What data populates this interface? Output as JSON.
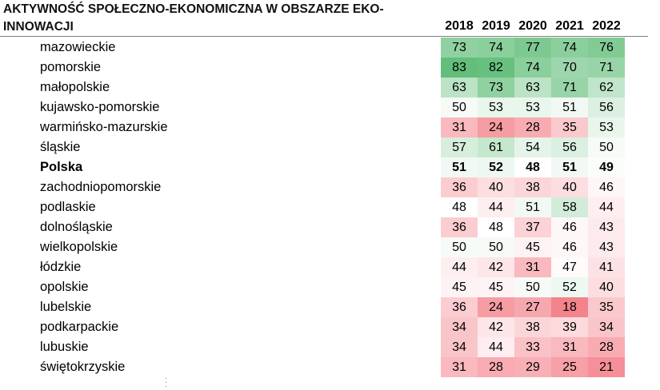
{
  "chart_data": {
    "type": "table",
    "title": "AKTYWNOŚĆ SPOŁECZNO-EKONOMICZNA W OBSZARZE EKO-INNOWACJI",
    "title_line1": "AKTYWNOŚĆ SPOŁECZNO-EKONOMICZNA W OBSZARZE EKO-",
    "title_line2": "INNOWACJI",
    "years": [
      "2018",
      "2019",
      "2020",
      "2021",
      "2022"
    ],
    "color_scale": {
      "low": "#f4838c",
      "mid": "#ffffff",
      "high": "#63be7b",
      "min": 18,
      "mid_value": 48,
      "max": 83
    },
    "rows": [
      {
        "region": "mazowieckie",
        "values": [
          73,
          74,
          77,
          74,
          76
        ],
        "bold": false
      },
      {
        "region": "pomorskie",
        "values": [
          83,
          82,
          74,
          70,
          71
        ],
        "bold": false
      },
      {
        "region": "małopolskie",
        "values": [
          63,
          73,
          63,
          71,
          62
        ],
        "bold": false
      },
      {
        "region": "kujawsko-pomorskie",
        "values": [
          50,
          53,
          53,
          51,
          56
        ],
        "bold": false
      },
      {
        "region": "warmińsko-mazurskie",
        "values": [
          31,
          24,
          28,
          35,
          53
        ],
        "bold": false
      },
      {
        "region": "śląskie",
        "values": [
          57,
          61,
          54,
          56,
          50
        ],
        "bold": false
      },
      {
        "region": "Polska",
        "values": [
          51,
          52,
          48,
          51,
          49
        ],
        "bold": true
      },
      {
        "region": "zachodniopomorskie",
        "values": [
          36,
          40,
          38,
          40,
          46
        ],
        "bold": false
      },
      {
        "region": "podlaskie",
        "values": [
          48,
          44,
          51,
          58,
          44
        ],
        "bold": false
      },
      {
        "region": "dolnośląskie",
        "values": [
          36,
          48,
          37,
          46,
          43
        ],
        "bold": false
      },
      {
        "region": "wielkopolskie",
        "values": [
          50,
          50,
          45,
          46,
          43
        ],
        "bold": false
      },
      {
        "region": "łódzkie",
        "values": [
          44,
          42,
          31,
          47,
          41
        ],
        "bold": false
      },
      {
        "region": "opolskie",
        "values": [
          45,
          45,
          50,
          52,
          40
        ],
        "bold": false
      },
      {
        "region": "lubelskie",
        "values": [
          36,
          24,
          27,
          18,
          35
        ],
        "bold": false
      },
      {
        "region": "podkarpackie",
        "values": [
          34,
          42,
          38,
          39,
          34
        ],
        "bold": false
      },
      {
        "region": "lubuskie",
        "values": [
          34,
          44,
          33,
          31,
          28
        ],
        "bold": false
      },
      {
        "region": "świętokrzyskie",
        "values": [
          31,
          28,
          29,
          25,
          21
        ],
        "bold": false
      }
    ]
  }
}
